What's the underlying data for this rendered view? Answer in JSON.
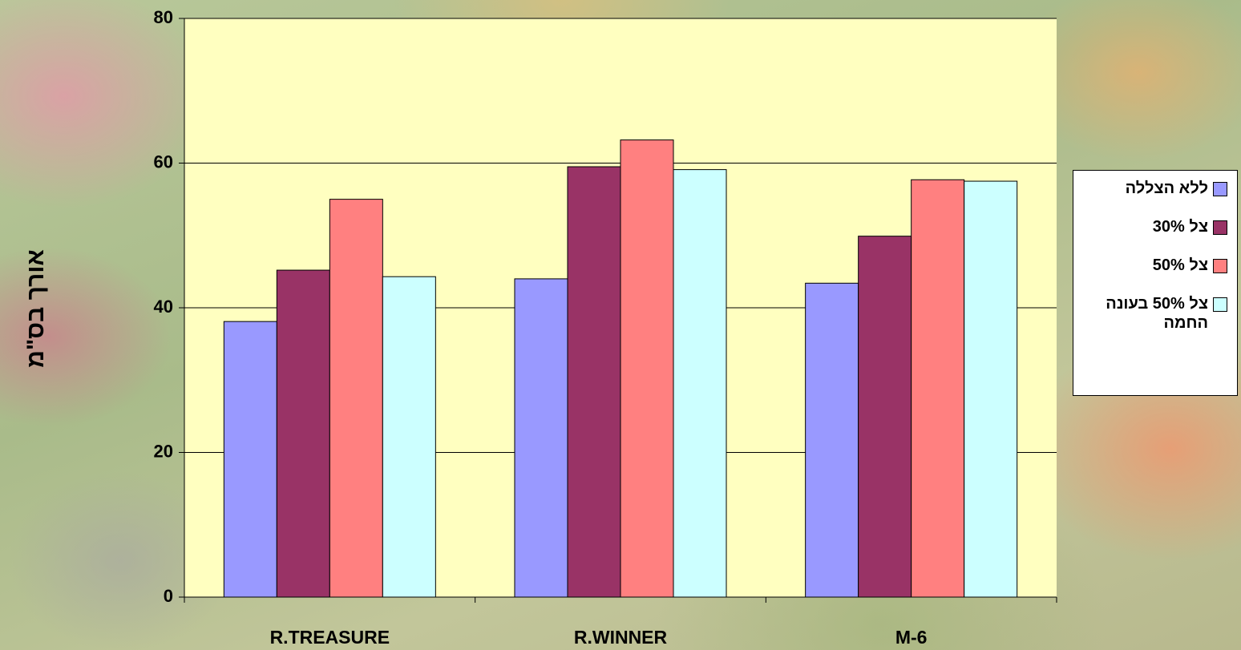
{
  "chart_data": {
    "type": "bar",
    "y_label": "אורך בס\"מ",
    "categories": [
      "R.TREASURE",
      "R.WINNER",
      "M-6"
    ],
    "series": [
      {
        "name": "ללא הצללה",
        "color": "#9999ff",
        "values": [
          38.1,
          44.0,
          43.4
        ]
      },
      {
        "name": "צל 30%",
        "color": "#993366",
        "values": [
          45.2,
          59.5,
          49.9
        ]
      },
      {
        "name": "צל 50%",
        "color": "#ff8080",
        "values": [
          55.0,
          63.2,
          57.7
        ]
      },
      {
        "name": "צל 50% בעונה החמה",
        "color": "#ccffff",
        "values": [
          44.3,
          59.1,
          57.5
        ]
      }
    ],
    "ylim": [
      0,
      80
    ],
    "yticks": [
      0,
      20,
      40,
      60,
      80
    ],
    "grid": true,
    "plot_background": "#ffffc0"
  }
}
